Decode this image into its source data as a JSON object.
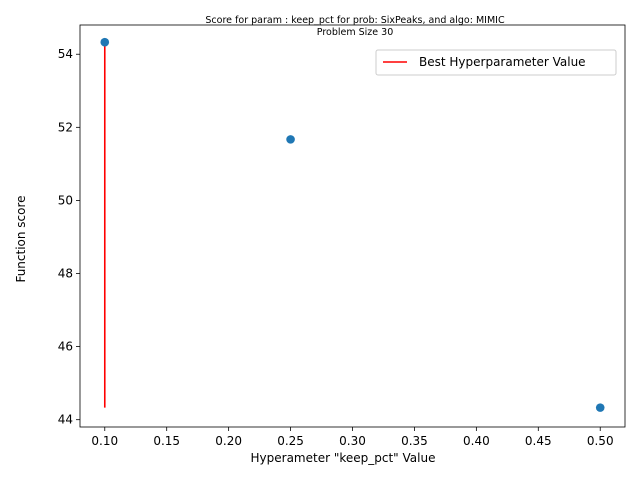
{
  "chart_data": {
    "type": "scatter",
    "title": "Score for param : keep_pct for prob: SixPeaks, and algo: MIMIC",
    "subtitle": "Problem Size 30",
    "xlabel": "Hyperameter \"keep_pct\" Value",
    "ylabel": "Function score",
    "xlim": [
      0.08,
      0.52
    ],
    "ylim": [
      43.8,
      54.8
    ],
    "x_ticks": [
      0.1,
      0.15,
      0.2,
      0.25,
      0.3,
      0.35,
      0.4,
      0.45,
      0.5
    ],
    "x_tick_labels": [
      "0.10",
      "0.15",
      "0.20",
      "0.25",
      "0.30",
      "0.35",
      "0.40",
      "0.45",
      "0.50"
    ],
    "y_ticks": [
      44,
      46,
      48,
      50,
      52,
      54
    ],
    "y_tick_labels": [
      "44",
      "46",
      "48",
      "50",
      "52",
      "54"
    ],
    "grid": false,
    "series": [
      {
        "type": "scatter",
        "x": [
          0.1,
          0.25,
          0.5
        ],
        "y": [
          54.33,
          51.67,
          44.33
        ],
        "color": "#1f77b4"
      }
    ],
    "vline": {
      "name": "Best Hyperparameter Value",
      "x": 0.1,
      "ymin": 44.33,
      "ymax": 54.33,
      "color": "#ff0000"
    },
    "legend": {
      "placement": "upper right",
      "entries": [
        "Best Hyperparameter Value"
      ]
    }
  }
}
